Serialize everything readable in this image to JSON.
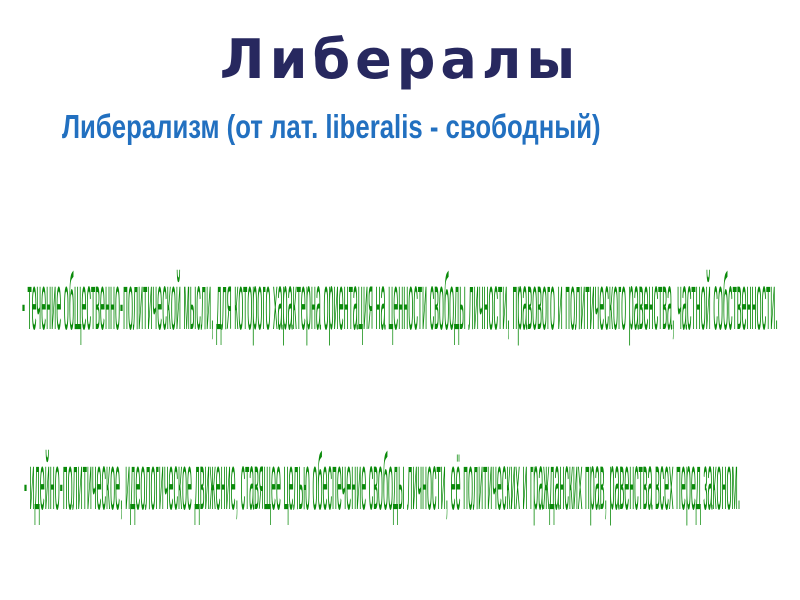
{
  "title": "Либералы",
  "subtitle": "Либерализм (от лат. liberalis - свободный)",
  "definitions": [
    "- течение общественно-политической мысли, для которого характерна ориентация на ценности свободы личности, правового и политического равенства, частной собственности.",
    "- идейно-политическое, идеологическое движение, ставящее целью обеспечение свободы личности, её политических и гражданских прав, равенства всех перед законом."
  ],
  "colors": {
    "title": "#27285f",
    "subtitle": "#2270c0",
    "definitions": "#0a8a0a"
  }
}
